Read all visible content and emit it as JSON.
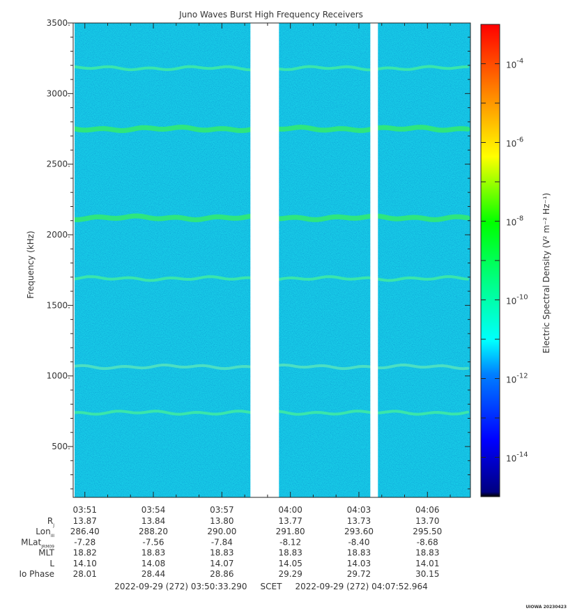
{
  "chart_data": {
    "type": "heatmap",
    "title": "Juno Waves Burst High Frequency Receivers",
    "ylabel": "Frequency (kHz)",
    "ylim": [
      140,
      3500
    ],
    "y_ticks": [
      "500.",
      "1000.",
      "1500.",
      "2000.",
      "2500.",
      "3000.",
      "3500."
    ],
    "x_ticks": [
      "03:51",
      "03:54",
      "03:57",
      "04:00",
      "04:03",
      "04:06"
    ],
    "time_range": [
      "03:50:33",
      "04:07:53"
    ],
    "data_gaps": [
      [
        "03:58:15",
        "03:59:30"
      ],
      [
        "04:03:30",
        "04:03:50"
      ]
    ],
    "background_level": "10^-12",
    "emission_bands": [
      {
        "frequency_khz": 3180,
        "level": "10^-11"
      },
      {
        "frequency_khz": 2750,
        "level": "10^-10.5"
      },
      {
        "frequency_khz": 2120,
        "level": "10^-10.5"
      },
      {
        "frequency_khz": 1690,
        "level": "10^-11"
      },
      {
        "frequency_khz": 1065,
        "level": "10^-11.5"
      },
      {
        "frequency_khz": 740,
        "level": "10^-11"
      }
    ],
    "colorbar": {
      "label": "Electric Spectral Density (V² m⁻² Hz⁻¹)",
      "scale": "log",
      "range": [
        "10^-15",
        "10^-3"
      ],
      "ticks": [
        {
          "base": "10",
          "exp": "-4"
        },
        {
          "base": "10",
          "exp": "-6"
        },
        {
          "base": "10",
          "exp": "-8"
        },
        {
          "base": "10",
          "exp": "-10"
        },
        {
          "base": "10",
          "exp": "-12"
        },
        {
          "base": "10",
          "exp": "-14"
        }
      ]
    },
    "ephemeris": {
      "labels": [
        "R",
        "Lon",
        "MLat",
        "MLT",
        "L",
        "Io Phase"
      ],
      "label_subs": [
        "J",
        "III",
        "JRM09",
        "",
        "",
        ""
      ],
      "rows": [
        [
          "13.87",
          "13.84",
          "13.80",
          "13.77",
          "13.73",
          "13.70"
        ],
        [
          "286.40",
          "288.20",
          "290.00",
          "291.80",
          "293.60",
          "295.50"
        ],
        [
          "-7.28",
          "-7.56",
          "-7.84",
          "-8.12",
          "-8.40",
          "-8.68"
        ],
        [
          "18.82",
          "18.83",
          "18.83",
          "18.83",
          "18.83",
          "18.83"
        ],
        [
          "14.10",
          "14.08",
          "14.07",
          "14.05",
          "14.03",
          "14.01"
        ],
        [
          "28.01",
          "28.44",
          "28.86",
          "29.29",
          "29.72",
          "30.15"
        ]
      ]
    },
    "footer": "2022-09-29 (272) 03:50:33.290     SCET     2022-09-29 (272) 04:07:52.964",
    "credit": "UIOWA 20230423"
  }
}
